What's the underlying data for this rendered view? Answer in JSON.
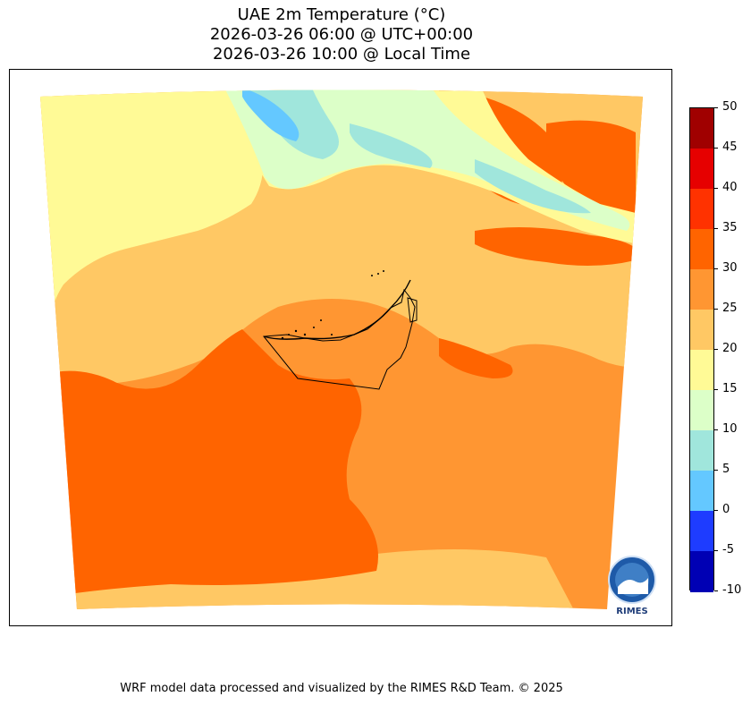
{
  "title": {
    "line1": "UAE 2m Temperature (°C)",
    "line2": "2026-03-26 06:00 @ UTC+00:00",
    "line3": "2026-03-26 10:00 @ Local Time"
  },
  "colorbar": {
    "levels": [
      {
        "label": "50",
        "color": "#a00000"
      },
      {
        "label": "45",
        "color": "#e60000"
      },
      {
        "label": "40",
        "color": "#ff3200"
      },
      {
        "label": "35",
        "color": "#ff6400"
      },
      {
        "label": "30",
        "color": "#ff9632"
      },
      {
        "label": "25",
        "color": "#ffc864"
      },
      {
        "label": "20",
        "color": "#fffa96"
      },
      {
        "label": "15",
        "color": "#dcffc8"
      },
      {
        "label": "10",
        "color": "#a0e6dc"
      },
      {
        "label": "5",
        "color": "#64c8ff"
      },
      {
        "label": "0",
        "color": "#1e3cff"
      },
      {
        "label": "-5",
        "color": "#0000b4"
      },
      {
        "label": "-10",
        "color": ""
      }
    ]
  },
  "logo": {
    "text": "RIMES",
    "icon": "rimes-logo-icon"
  },
  "credit": "WRF model data processed and visualized by the RIMES R&D Team. © 2025"
}
